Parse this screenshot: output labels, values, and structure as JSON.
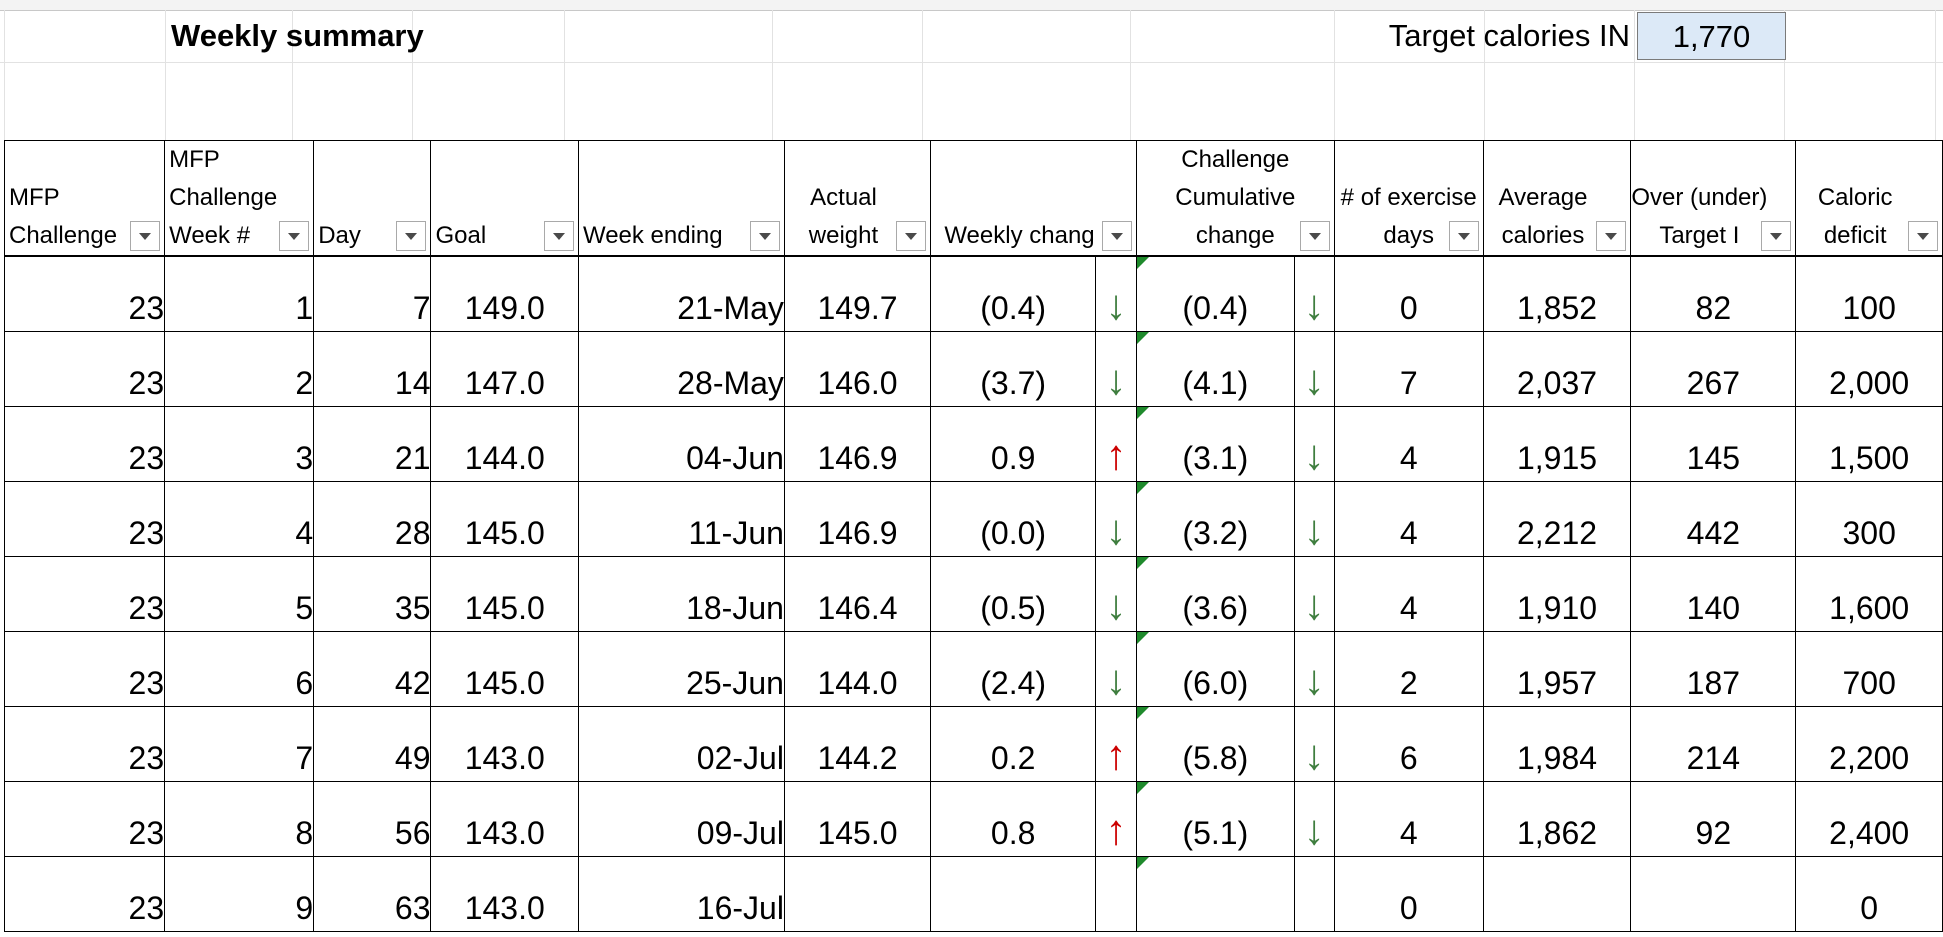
{
  "title": "Weekly summary",
  "target": {
    "label": "Target calories IN",
    "value": "1,770"
  },
  "columns": [
    {
      "key": "challenge",
      "lines": [
        "MFP",
        "Challenge"
      ]
    },
    {
      "key": "week",
      "lines": [
        "MFP",
        "Challenge",
        "Week #"
      ]
    },
    {
      "key": "day",
      "lines": [
        "Day"
      ]
    },
    {
      "key": "goal",
      "lines": [
        "Goal"
      ]
    },
    {
      "key": "week_ending",
      "lines": [
        "Week ending"
      ]
    },
    {
      "key": "actual_weight",
      "lines": [
        "Actual",
        "weight"
      ]
    },
    {
      "key": "weekly_change",
      "lines": [
        "Weekly chang"
      ]
    },
    {
      "key": "cumulative_change",
      "lines": [
        "Challenge",
        "Cumulative",
        "change"
      ]
    },
    {
      "key": "exercise_days",
      "lines": [
        "# of exercise",
        "days"
      ]
    },
    {
      "key": "avg_calories",
      "lines": [
        "Average",
        "calories"
      ]
    },
    {
      "key": "over_under",
      "lines": [
        "Over (under)",
        "Target I"
      ]
    },
    {
      "key": "caloric_deficit",
      "lines": [
        "Caloric",
        "deficit"
      ]
    }
  ],
  "rows": [
    {
      "challenge": "23",
      "week": "1",
      "day": "7",
      "goal": "149.0",
      "week_ending": "21-May",
      "actual_weight": "149.7",
      "weekly_change": "(0.4)",
      "weekly_dir": "down",
      "cumulative_change": "(0.4)",
      "cum_dir": "down",
      "exercise_days": "0",
      "avg_calories": "1,852",
      "over_under": "82",
      "caloric_deficit": "100"
    },
    {
      "challenge": "23",
      "week": "2",
      "day": "14",
      "goal": "147.0",
      "week_ending": "28-May",
      "actual_weight": "146.0",
      "weekly_change": "(3.7)",
      "weekly_dir": "down",
      "cumulative_change": "(4.1)",
      "cum_dir": "down",
      "exercise_days": "7",
      "avg_calories": "2,037",
      "over_under": "267",
      "caloric_deficit": "2,000"
    },
    {
      "challenge": "23",
      "week": "3",
      "day": "21",
      "goal": "144.0",
      "week_ending": "04-Jun",
      "actual_weight": "146.9",
      "weekly_change": "0.9",
      "weekly_dir": "up",
      "cumulative_change": "(3.1)",
      "cum_dir": "down",
      "exercise_days": "4",
      "avg_calories": "1,915",
      "over_under": "145",
      "caloric_deficit": "1,500"
    },
    {
      "challenge": "23",
      "week": "4",
      "day": "28",
      "goal": "145.0",
      "week_ending": "11-Jun",
      "actual_weight": "146.9",
      "weekly_change": "(0.0)",
      "weekly_dir": "down",
      "cumulative_change": "(3.2)",
      "cum_dir": "down",
      "exercise_days": "4",
      "avg_calories": "2,212",
      "over_under": "442",
      "caloric_deficit": "300"
    },
    {
      "challenge": "23",
      "week": "5",
      "day": "35",
      "goal": "145.0",
      "week_ending": "18-Jun",
      "actual_weight": "146.4",
      "weekly_change": "(0.5)",
      "weekly_dir": "down",
      "cumulative_change": "(3.6)",
      "cum_dir": "down",
      "exercise_days": "4",
      "avg_calories": "1,910",
      "over_under": "140",
      "caloric_deficit": "1,600"
    },
    {
      "challenge": "23",
      "week": "6",
      "day": "42",
      "goal": "145.0",
      "week_ending": "25-Jun",
      "actual_weight": "144.0",
      "weekly_change": "(2.4)",
      "weekly_dir": "down",
      "cumulative_change": "(6.0)",
      "cum_dir": "down",
      "exercise_days": "2",
      "avg_calories": "1,957",
      "over_under": "187",
      "caloric_deficit": "700"
    },
    {
      "challenge": "23",
      "week": "7",
      "day": "49",
      "goal": "143.0",
      "week_ending": "02-Jul",
      "actual_weight": "144.2",
      "weekly_change": "0.2",
      "weekly_dir": "up",
      "cumulative_change": "(5.8)",
      "cum_dir": "down",
      "exercise_days": "6",
      "avg_calories": "1,984",
      "over_under": "214",
      "caloric_deficit": "2,200"
    },
    {
      "challenge": "23",
      "week": "8",
      "day": "56",
      "goal": "143.0",
      "week_ending": "09-Jul",
      "actual_weight": "145.0",
      "weekly_change": "0.8",
      "weekly_dir": "up",
      "cumulative_change": "(5.1)",
      "cum_dir": "down",
      "exercise_days": "4",
      "avg_calories": "1,862",
      "over_under": "92",
      "caloric_deficit": "2,400"
    },
    {
      "challenge": "23",
      "week": "9",
      "day": "63",
      "goal": "143.0",
      "week_ending": "16-Jul",
      "actual_weight": "",
      "weekly_change": "",
      "weekly_dir": "",
      "cumulative_change": "",
      "cum_dir": "",
      "exercise_days": "0",
      "avg_calories": "",
      "over_under": "",
      "caloric_deficit": "0"
    }
  ]
}
